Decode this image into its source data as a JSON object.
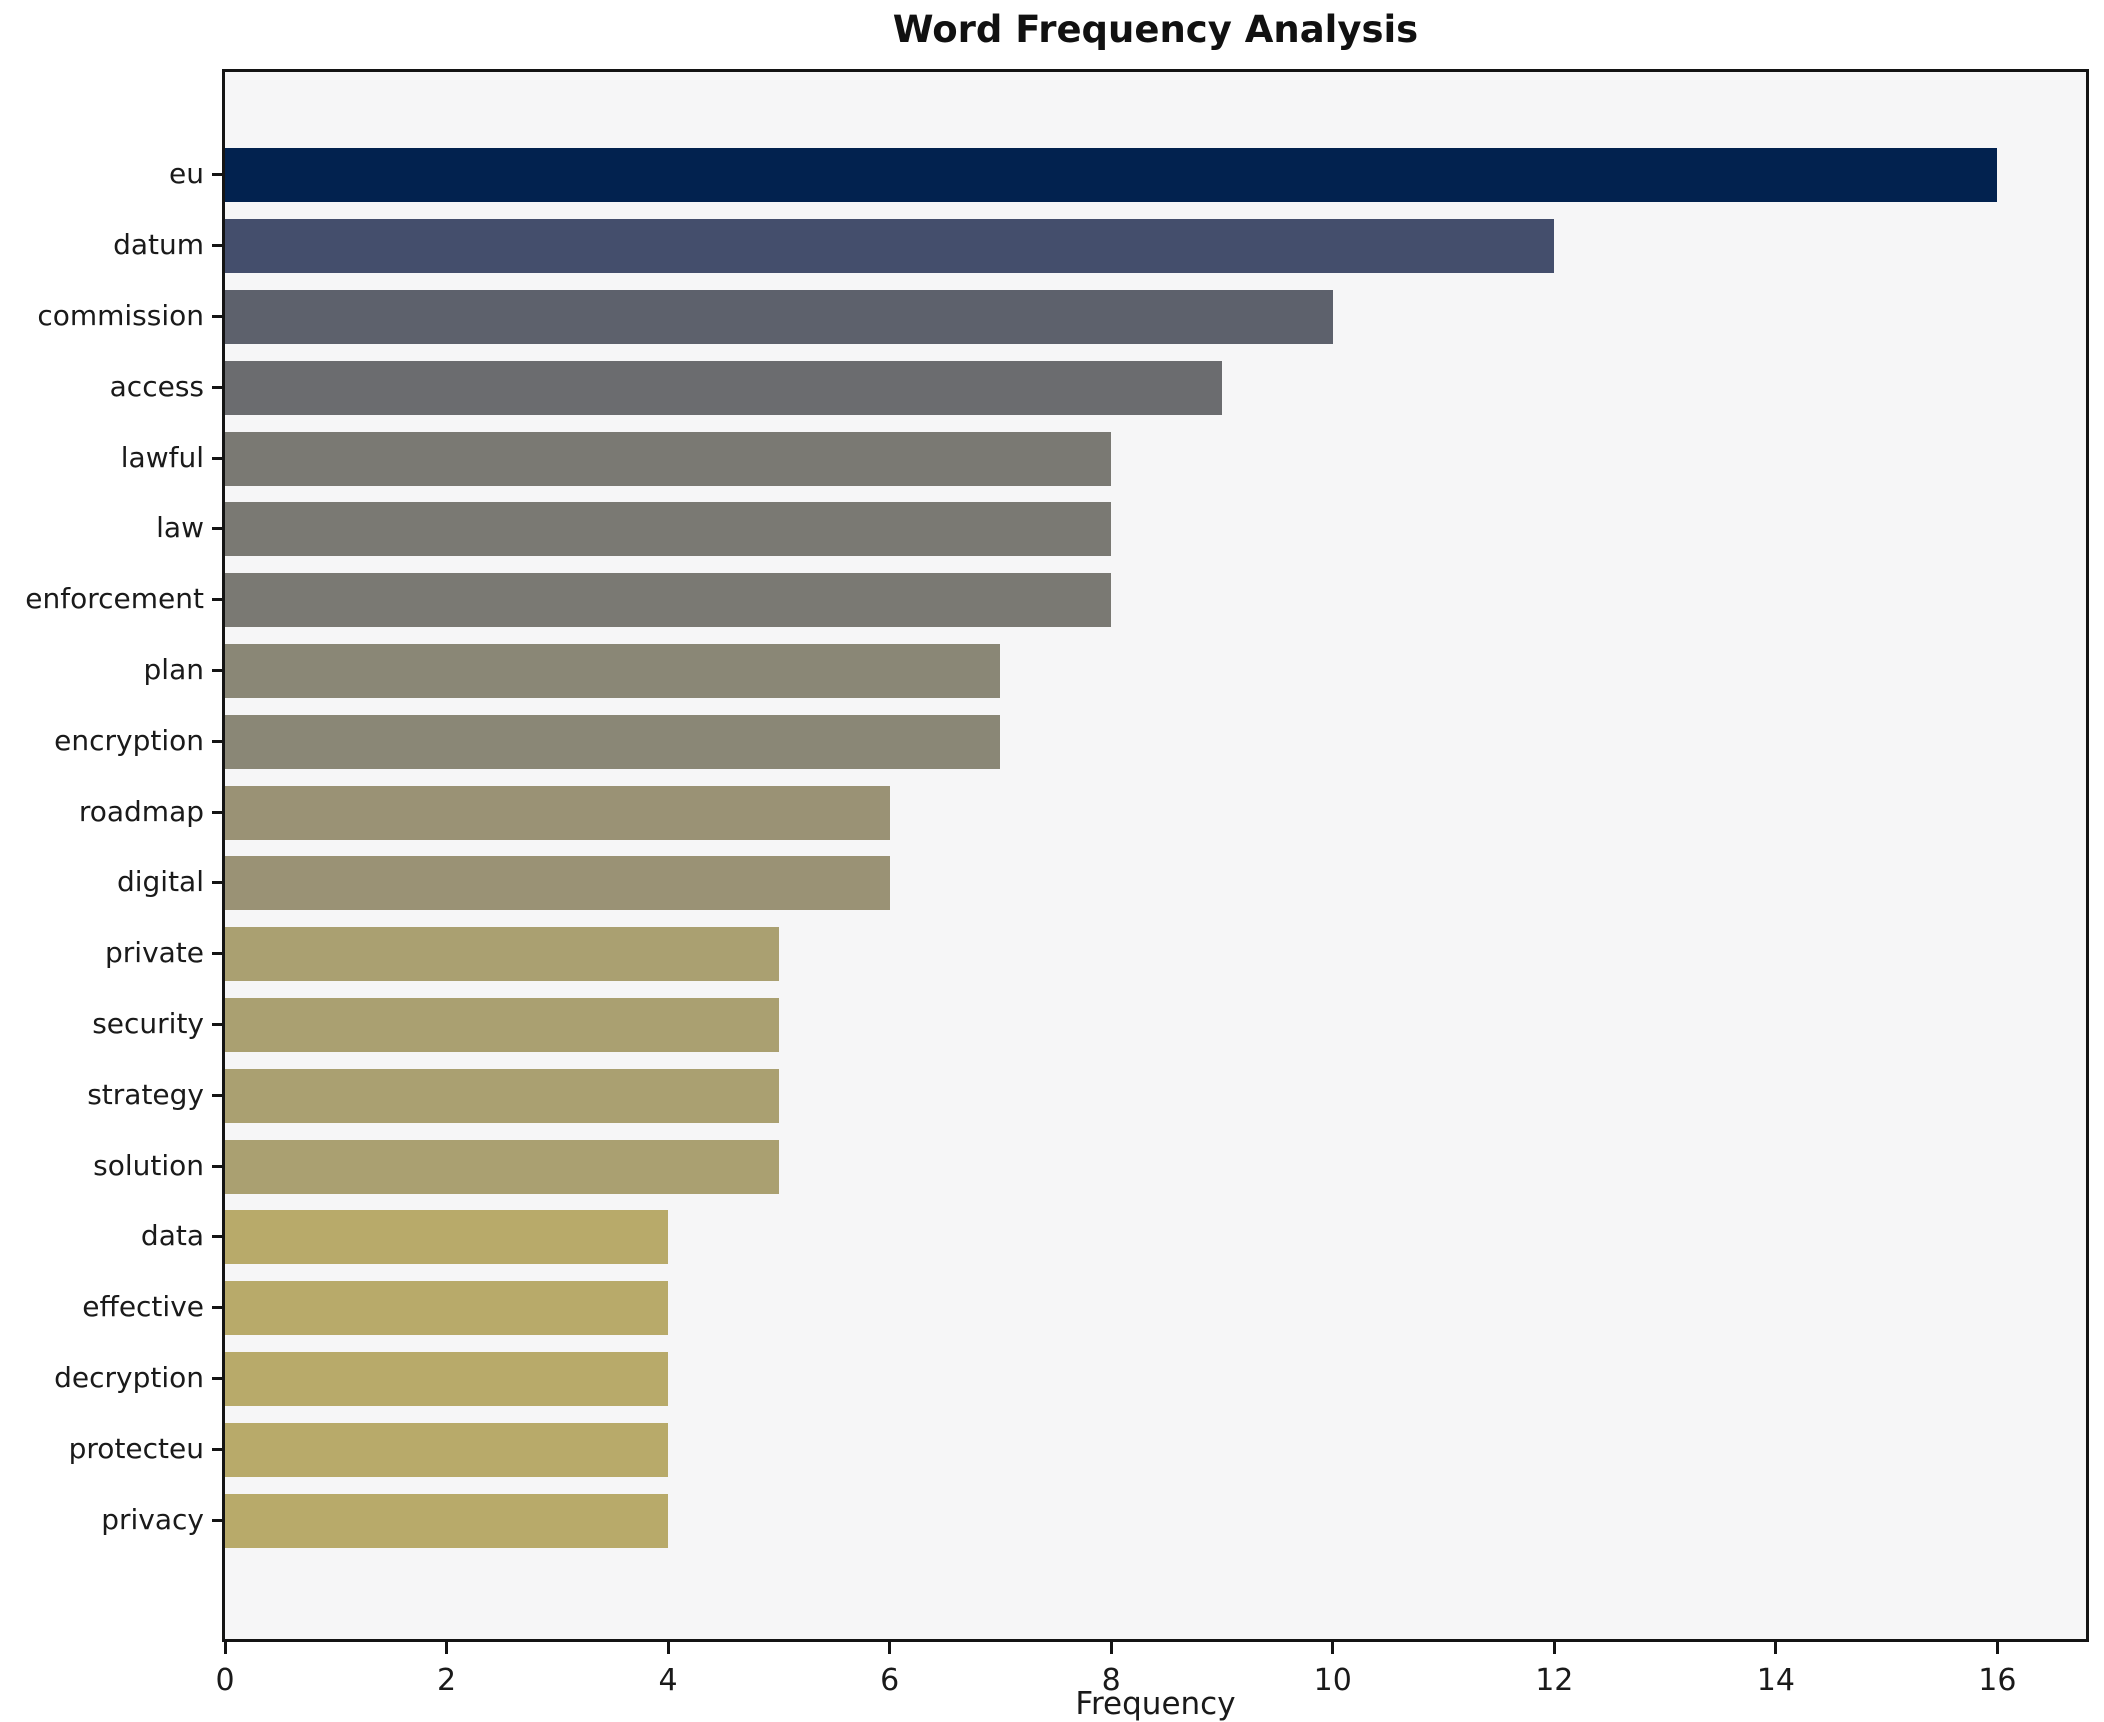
{
  "title": "Word Frequency Analysis",
  "chart_data": {
    "type": "bar",
    "orientation": "horizontal",
    "title": "Word Frequency Analysis",
    "xlabel": "Frequency",
    "ylabel": "",
    "categories": [
      "eu",
      "datum",
      "commission",
      "access",
      "lawful",
      "law",
      "enforcement",
      "plan",
      "encryption",
      "roadmap",
      "digital",
      "private",
      "security",
      "strategy",
      "solution",
      "data",
      "effective",
      "decryption",
      "protecteu",
      "privacy"
    ],
    "values": [
      16,
      12,
      10,
      9,
      8,
      8,
      8,
      7,
      7,
      6,
      6,
      5,
      5,
      5,
      5,
      4,
      4,
      4,
      4,
      4
    ],
    "bar_colors": [
      "#02224f",
      "#444e6c",
      "#5d616c",
      "#6b6c6f",
      "#7a7973",
      "#7a7973",
      "#7a7973",
      "#8a8776",
      "#8a8776",
      "#9a9275",
      "#9a9275",
      "#aaa071",
      "#aaa071",
      "#aaa071",
      "#aaa071",
      "#b8aa6a",
      "#b8aa6a",
      "#b8aa6a",
      "#b8aa6a",
      "#b8aa6a"
    ],
    "xlim": [
      0,
      16.8
    ],
    "xticks": [
      0,
      2,
      4,
      6,
      8,
      10,
      12,
      14,
      16
    ],
    "grid": false,
    "legend": null,
    "plot_background": "#f6f6f7",
    "spine_color": "#141414"
  }
}
